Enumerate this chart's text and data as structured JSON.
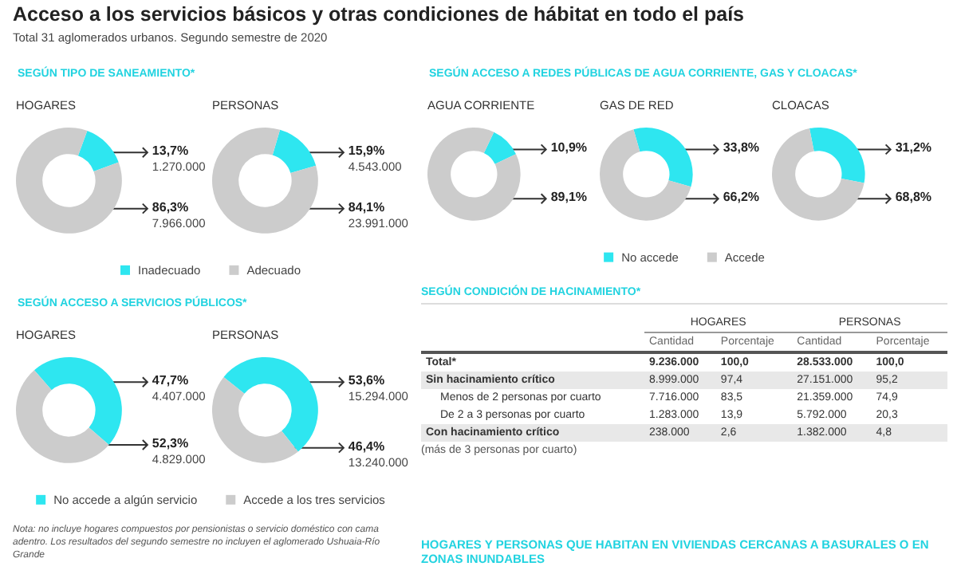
{
  "chart_data": [
    {
      "type": "other",
      "title": "Acceso a los servicios básicos y otras condiciones de hábitat en todo el país",
      "subtitle": "Total 31 aglomerados urbanos. Segundo semestre de 2020"
    },
    {
      "type": "donut",
      "title": "SEGÚN TIPO DE SANEAMIENTO*",
      "categories": [
        "Inadecuado",
        "Adecuado"
      ],
      "colors": [
        "#2ee6f0",
        "#cccccc"
      ],
      "legend": "bottom",
      "series": [
        {
          "name": "HOGARES",
          "values": [
            1270000,
            7966000
          ],
          "value_labels": [
            "13,7%\n1.270.000",
            "86,3%\n7.966.000"
          ]
        },
        {
          "name": "PERSONAS",
          "values": [
            4543000,
            23991000
          ],
          "value_labels": [
            "15,9%\n4.543.000",
            "84,1%\n23.991.000"
          ]
        }
      ]
    },
    {
      "type": "donut",
      "title": "SEGÚN ACCESO A REDES PÚBLICAS DE AGUA CORRIENTE, GAS Y CLOACAS*",
      "categories": [
        "No accede",
        "Accede"
      ],
      "colors": [
        "#2ee6f0",
        "#cccccc"
      ],
      "legend": "bottom",
      "series": [
        {
          "name": "AGUA CORRIENTE",
          "values": [
            10.9,
            89.1
          ],
          "value_labels": [
            "10,9%",
            "89,1%"
          ]
        },
        {
          "name": "GAS DE RED",
          "values": [
            33.8,
            66.2
          ],
          "value_labels": [
            "33,8%",
            "66,2%"
          ]
        },
        {
          "name": "CLOACAS",
          "values": [
            31.2,
            68.8
          ],
          "value_labels": [
            "31,2%",
            "68,8%"
          ]
        }
      ]
    },
    {
      "type": "donut",
      "title": "SEGÚN ACCESO A SERVICIOS PÚBLICOS*",
      "categories": [
        "No accede a algún servicio",
        "Accede a los tres servicios"
      ],
      "colors": [
        "#2ee6f0",
        "#cccccc"
      ],
      "legend": "bottom",
      "series": [
        {
          "name": "HOGARES",
          "values": [
            4407000,
            4829000
          ],
          "value_labels": [
            "47,7%\n4.407.000",
            "52,3%\n4.829.000"
          ]
        },
        {
          "name": "PERSONAS",
          "values": [
            15294000,
            13240000
          ],
          "value_labels": [
            "53,6%\n15.294.000",
            "46,4%\n13.240.000"
          ]
        }
      ],
      "annotations": [
        "Nota: no incluye hogares compuestos por pensionistas o servicio doméstico con cama adentro. Los resultados del segundo semestre no incluyen el aglomerado Ushuaia-Río Grande"
      ]
    },
    {
      "type": "other",
      "title": "SEGÚN CONDICIÓN DE HACINAMIENTO*",
      "categories": [
        "Total*",
        "Sin hacinamiento crítico",
        "Menos de 2 personas por cuarto",
        "De 2 a 3 personas por cuarto",
        "Con hacinamiento crítico"
      ],
      "series": [
        {
          "name": "Cantidad",
          "values": [
            9236000,
            8999000,
            7716000,
            1283000,
            238000
          ],
          "value_labels": [
            "9.236.000",
            "8.999.000",
            "7.716.000",
            "1.283.000",
            "238.000"
          ]
        },
        {
          "name": "Porcentaje",
          "values": [
            100.0,
            97.4,
            83.5,
            13.9,
            2.6
          ],
          "value_labels": [
            "100,0",
            "97,4",
            "83,5",
            "13,9",
            "2,6"
          ]
        },
        {
          "name": "Cantidad",
          "values": [
            28533000,
            27151000,
            21359000,
            5792000,
            1382000
          ],
          "value_labels": [
            "28.533.000",
            "27.151.000",
            "21.359.000",
            "5.792.000",
            "1.382.000"
          ]
        },
        {
          "name": "Porcentaje",
          "values": [
            100.0,
            95.2,
            74.9,
            20.3,
            4.8
          ],
          "value_labels": [
            "100,0",
            "95,2",
            "74,9",
            "20,3",
            "4,8"
          ]
        }
      ],
      "annotations": [
        "HOGARES",
        "PERSONAS",
        "(más de 3 personas por cuarto)"
      ]
    },
    {
      "type": "other",
      "title": "HOGARES Y PERSONAS QUE HABITAN EN VIVIENDAS CERCANAS A BASURALES O EN ZONAS INUNDABLES"
    }
  ]
}
